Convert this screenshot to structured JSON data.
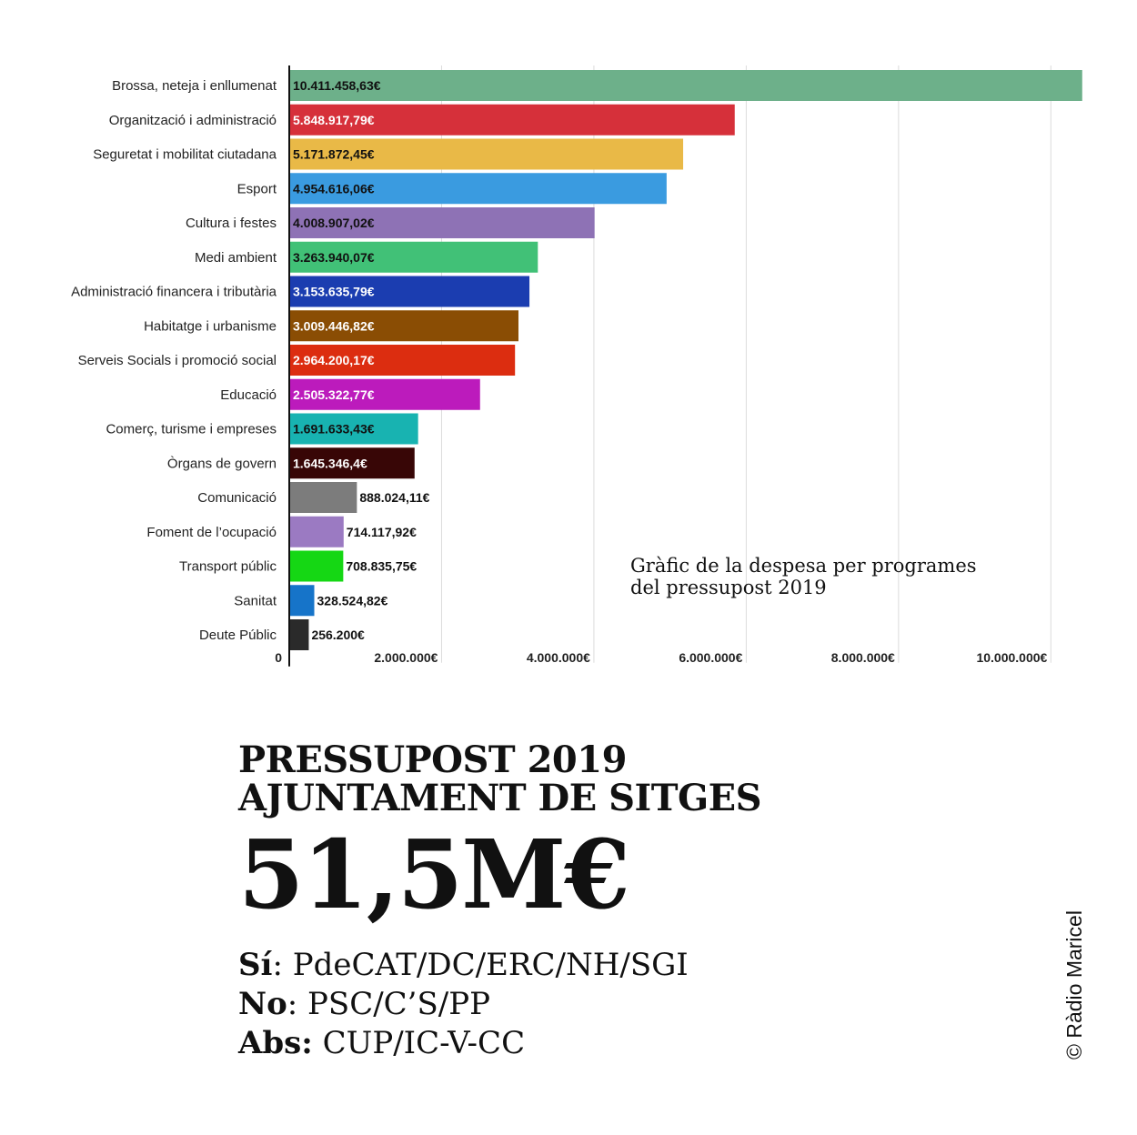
{
  "chart_data": {
    "type": "bar",
    "orientation": "horizontal",
    "categories": [
      "Brossa, neteja i enllumenat",
      "Organització i administració",
      "Seguretat i mobilitat ciutadana",
      "Esport",
      "Cultura i festes",
      "Medi ambient",
      "Administració financera i tributària",
      "Habitatge i urbanisme",
      "Serveis Socials i promoció social",
      "Educació",
      "Comerç, turisme i empreses",
      "Òrgans de govern",
      "Comunicació",
      "Foment de l’ocupació",
      "Transport públic",
      "Sanitat",
      "Deute Públic"
    ],
    "values": [
      10411458.63,
      5848917.79,
      5171872.45,
      4954616.06,
      4008907.02,
      3263940.07,
      3153635.79,
      3009446.82,
      2964200.17,
      2505322.77,
      1691633.43,
      1645346.4,
      888024.11,
      714117.92,
      708835.75,
      328524.82,
      256200
    ],
    "value_labels": [
      "10.411.458,63€",
      "5.848.917,79€",
      "5.171.872,45€",
      "4.954.616,06€",
      "4.008.907,02€",
      "3.263.940,07€",
      "3.153.635,79€",
      "3.009.446,82€",
      "2.964.200,17€",
      "2.505.322,77€",
      "1.691.633,43€",
      "1.645.346,4€",
      "888.024,11€",
      "714.117,92€",
      "708.835,75€",
      "328.524,82€",
      "256.200€"
    ],
    "colors": [
      "#6db08a",
      "#d6303a",
      "#e9b947",
      "#3a9be0",
      "#8e72b5",
      "#41c177",
      "#1b3db0",
      "#8a4d04",
      "#dc2d10",
      "#bc1bbc",
      "#18b3b1",
      "#380606",
      "#7c7c7c",
      "#9b7ac2",
      "#15d714",
      "#1674c9",
      "#2a2a2a"
    ],
    "label_colors": [
      "#111111",
      "#ffffff",
      "#111111",
      "#111111",
      "#111111",
      "#111111",
      "#ffffff",
      "#ffffff",
      "#ffffff",
      "#ffffff",
      "#111111",
      "#ffffff",
      "#111111",
      "#111111",
      "#111111",
      "#111111",
      "#111111"
    ],
    "label_inside": [
      true,
      true,
      true,
      true,
      true,
      true,
      true,
      true,
      true,
      true,
      true,
      true,
      false,
      false,
      false,
      false,
      false
    ],
    "x_ticks": [
      0,
      2000000,
      4000000,
      6000000,
      8000000,
      10000000
    ],
    "x_tick_labels": [
      "0",
      "2.000.000€",
      "4.000.000€",
      "6.000.000€",
      "8.000.000€",
      "10.000.000€"
    ],
    "xlim": [
      0,
      10450000
    ],
    "grid": true,
    "xlabel": "",
    "ylabel": ""
  },
  "caption_lines": [
    "Gràfic de la despesa per programes",
    "del pressupost 2019"
  ],
  "title_lines": [
    "PRESSUPOST 2019",
    "AJUNTAMENT DE SITGES"
  ],
  "total": "51,5M€",
  "votes": [
    {
      "key": "Sí",
      "value": ": PdeCAT/DC/ERC/NH/SGI"
    },
    {
      "key": "No",
      "value": ": PSC/C’S/PP"
    },
    {
      "key": "Abs:",
      "value": " CUP/IC-V-CC"
    }
  ],
  "credit": "© Ràdio Maricel"
}
